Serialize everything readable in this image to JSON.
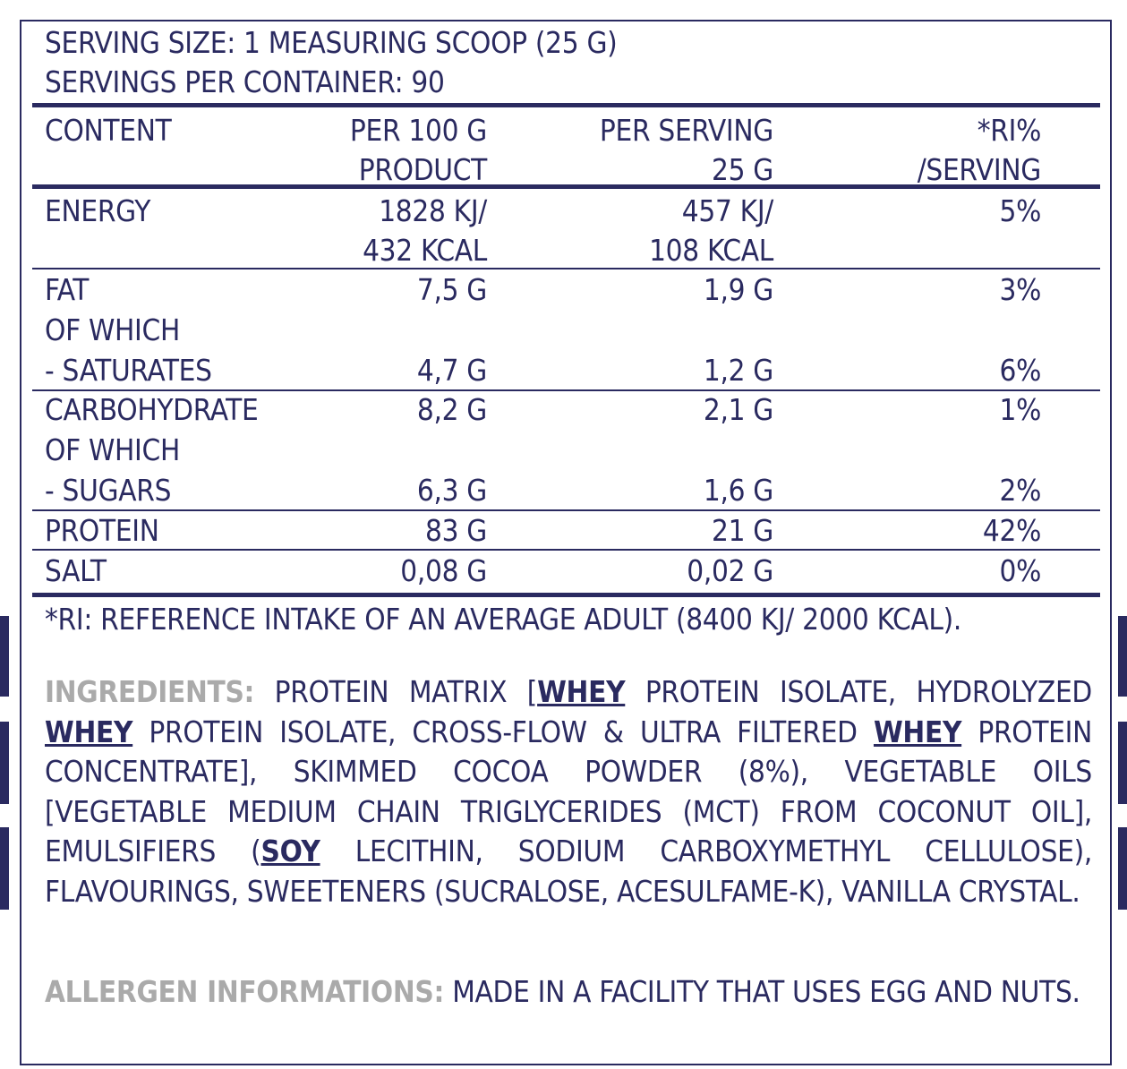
{
  "serving": {
    "size": "SERVING SIZE: 1 MEASURING SCOOP (25 G)",
    "per_container": "SERVINGS PER CONTAINER: 90"
  },
  "table": {
    "headers": {
      "content": "CONTENT",
      "per100_l1": "PER 100 G",
      "per100_l2": "PRODUCT",
      "serving_l1": "PER SERVING",
      "serving_l2": "25 G",
      "ri_l1": "*RI%",
      "ri_l2": "/SERVING"
    },
    "energy": {
      "label": "ENERGY",
      "per100_l1": "1828 KJ/",
      "per100_l2": "432 KCAL",
      "serving_l1": "457 KJ/",
      "serving_l2": "108 KCAL",
      "ri": "5%"
    },
    "fat": {
      "label": "FAT",
      "per100": "7,5 G",
      "serving": "1,9 G",
      "ri": "3%"
    },
    "fat_of_which": "OF WHICH",
    "saturates": {
      "label": "- SATURATES",
      "per100": "4,7 G",
      "serving": "1,2 G",
      "ri": "6%"
    },
    "carbohydrate": {
      "label": "CARBOHYDRATE",
      "per100": "8,2 G",
      "serving": "2,1 G",
      "ri": "1%"
    },
    "carb_of_which": "OF WHICH",
    "sugars": {
      "label": "- SUGARS",
      "per100": "6,3 G",
      "serving": "1,6 G",
      "ri": "2%"
    },
    "protein": {
      "label": "PROTEIN",
      "per100": "83 G",
      "serving": "21 G",
      "ri": "42%"
    },
    "salt": {
      "label": "SALT",
      "per100": "0,08 G",
      "serving": "0,02 G",
      "ri": "0%"
    }
  },
  "ri_note": "*RI: REFERENCE INTAKE OF AN AVERAGE ADULT (8400 KJ/ 2000 KCAL).",
  "ingredients": {
    "label": "INGREDIENTS:",
    "p1": " PROTEIN MATRIX [",
    "a1": "WHEY",
    "p2": " PROTEIN ISOLATE, HYDROLYZED ",
    "a2": "WHEY",
    "p3": " PROTEIN ISOLATE, CROSS-FLOW & ULTRA FILTERED ",
    "a3": "WHEY",
    "p4": " PROTEIN CONCENTRATE], SKIMMED COCOA POWDER (8%), VEGETABLE OILS [VEGETABLE MEDIUM CHAIN TRIGLYCERIDES (MCT) FROM COCONUT OIL], EMULSIFIERS (",
    "a4": "SOY",
    "p5": " LECITHIN, SODIUM CARBOXYMETHYL CELLULOSE), FLAVOURINGS, SWEETENERS (SUCRALOSE, ACESULFAME-K), VANILLA CRYSTAL."
  },
  "allergen": {
    "label": "ALLERGEN INFORMATIONS:",
    "text": " MADE IN A FACILITY THAT USES EGG AND NUTS."
  },
  "colors": {
    "ink": "#2a2a60",
    "label_gray": "#aaaaaa"
  }
}
